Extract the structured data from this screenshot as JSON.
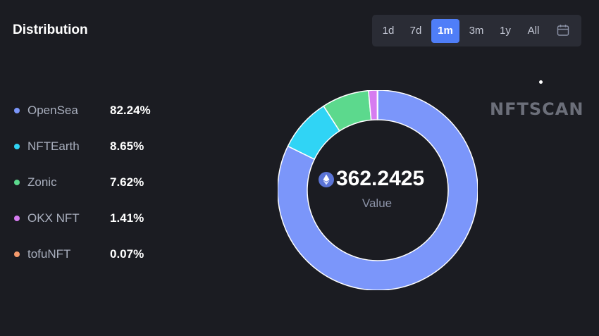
{
  "header": {
    "title": "Distribution"
  },
  "range_selector": {
    "options": [
      "1d",
      "7d",
      "1m",
      "3m",
      "1y",
      "All"
    ],
    "selected": "1m",
    "calendar_icon": "calendar-icon"
  },
  "watermark": "NFTSCAN",
  "center": {
    "value": "362.2425",
    "label": "Value",
    "icon": "ethereum-icon"
  },
  "chart_data": {
    "type": "pie",
    "style": "donut",
    "categories": [
      "OpenSea",
      "NFTEarth",
      "Zonic",
      "OKX NFT",
      "tofuNFT"
    ],
    "values": [
      82.24,
      8.65,
      7.62,
      1.41,
      0.07
    ],
    "labels": [
      "82.24%",
      "8.65%",
      "7.62%",
      "1.41%",
      "0.07%"
    ],
    "colors": [
      "#7b96fa",
      "#30d4f5",
      "#5cd98d",
      "#d67cf0",
      "#f59a6c"
    ],
    "legend_position": "left"
  }
}
